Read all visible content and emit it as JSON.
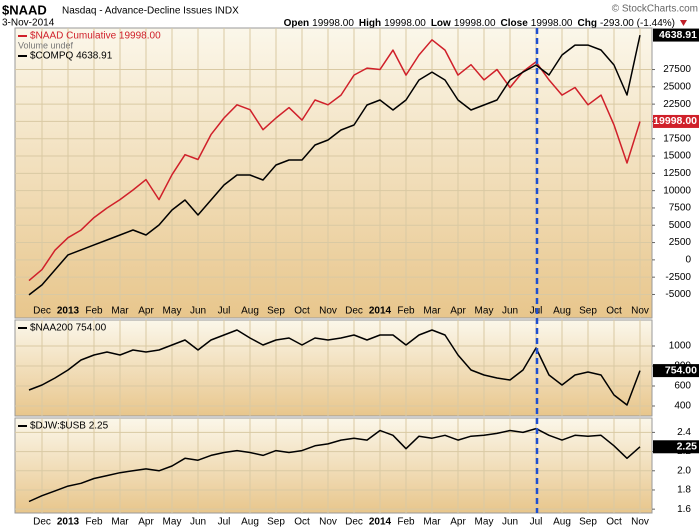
{
  "header": {
    "symbol": "$NAAD",
    "name": "Nasdaq - Advance-Decline Issues INDX",
    "date": "3-Nov-2014",
    "brand": "© StockCharts.com",
    "quote": [
      {
        "label": "Open",
        "value": "19998.00"
      },
      {
        "label": "High",
        "value": "19998.00"
      },
      {
        "label": "Low",
        "value": "19998.00"
      },
      {
        "label": "Close",
        "value": "19998.00"
      },
      {
        "label": "Chg",
        "value": "-293.00 (-1.44%)"
      }
    ]
  },
  "chart_data": [
    {
      "type": "line",
      "grid": true,
      "categories": [
        null,
        "Dec",
        null,
        "2013",
        null,
        "Feb",
        null,
        "Mar",
        null,
        "Apr",
        null,
        "May",
        null,
        "Jun",
        null,
        "Jul",
        null,
        "Aug",
        null,
        "Sep",
        null,
        "Oct",
        null,
        "Nov",
        null,
        "Dec",
        null,
        "2014",
        null,
        "Feb",
        null,
        "Mar",
        null,
        "Apr",
        null,
        "May",
        null,
        "Jun",
        null,
        "Jul",
        null,
        "Aug",
        null,
        "Sep",
        null,
        "Oct",
        null,
        "Nov"
      ],
      "ylim": [
        -8400,
        33500
      ],
      "yticks": [
        -5000,
        -2500,
        0,
        2500,
        5000,
        7500,
        10000,
        12500,
        15000,
        17500,
        20000,
        22500,
        25000,
        27500
      ],
      "y2lim": [
        2714,
        4687
      ],
      "volume_note": "Volume undef",
      "series": [
        {
          "name": "$NAAD Cumulative 19998.00",
          "color": "#d0202a",
          "last_label": "19998.00",
          "values": [
            -3000,
            -1400,
            1400,
            3200,
            4300,
            6100,
            7500,
            8700,
            10100,
            11600,
            8700,
            12300,
            15200,
            14500,
            18100,
            20500,
            22400,
            21700,
            18800,
            20500,
            22000,
            20200,
            23100,
            22400,
            23800,
            26700,
            27700,
            27500,
            30300,
            26700,
            29600,
            31800,
            30300,
            26700,
            28200,
            26000,
            27500,
            24900,
            27200,
            28600,
            26000,
            23800,
            24900,
            22400,
            23800,
            19500,
            14000,
            19998
          ]
        },
        {
          "name": "$COMPQ 4638.91",
          "color": "#000000",
          "axis": "y2",
          "last_label": "4638.91",
          "values": [
            2871,
            2939,
            3041,
            3143,
            3177,
            3211,
            3245,
            3279,
            3313,
            3279,
            3347,
            3449,
            3517,
            3415,
            3517,
            3619,
            3687,
            3687,
            3653,
            3755,
            3789,
            3789,
            3891,
            3925,
            3993,
            4027,
            4163,
            4197,
            4129,
            4197,
            4333,
            4387,
            4333,
            4197,
            4129,
            4163,
            4197,
            4333,
            4387,
            4435,
            4367,
            4503,
            4571,
            4571,
            4537,
            4435,
            4231,
            4638.91
          ]
        }
      ]
    },
    {
      "type": "line",
      "grid": true,
      "ylim": [
        300,
        1260
      ],
      "yticks": [
        400,
        600,
        800,
        1000
      ],
      "series": [
        {
          "name": "$NAA200 754.00",
          "color": "#000000",
          "last_label": "754.00",
          "values": [
            560,
            610,
            680,
            760,
            860,
            910,
            940,
            910,
            960,
            940,
            960,
            1010,
            1060,
            960,
            1060,
            1110,
            1160,
            1080,
            1010,
            1060,
            1080,
            1010,
            1080,
            1060,
            1080,
            1110,
            1060,
            1110,
            1110,
            1010,
            1110,
            1160,
            1110,
            910,
            760,
            710,
            680,
            660,
            760,
            980,
            710,
            610,
            710,
            740,
            710,
            510,
            410,
            754
          ]
        }
      ]
    },
    {
      "type": "line",
      "grid": true,
      "categories": [
        null,
        "Dec",
        null,
        "2013",
        null,
        "Feb",
        null,
        "Mar",
        null,
        "Apr",
        null,
        "May",
        null,
        "Jun",
        null,
        "Jul",
        null,
        "Aug",
        null,
        "Sep",
        null,
        "Oct",
        null,
        "Nov",
        null,
        "Dec",
        null,
        "2014",
        null,
        "Feb",
        null,
        "Mar",
        null,
        "Apr",
        null,
        "May",
        null,
        "Jun",
        null,
        "Jul",
        null,
        "Aug",
        null,
        "Sep",
        null,
        "Oct",
        null,
        "Nov"
      ],
      "ylim": [
        1.56,
        2.55
      ],
      "yticks": [
        1.6,
        1.8,
        {
          "value": 2,
          "label": "2.0"
        },
        2.2,
        2.4
      ],
      "series": [
        {
          "name": "$DJW:$USB 2.25",
          "color": "#000000",
          "last_label": "2.25",
          "values": [
            1.68,
            1.74,
            1.79,
            1.84,
            1.87,
            1.92,
            1.95,
            1.98,
            2,
            2.02,
            2,
            2.05,
            2.13,
            2.11,
            2.16,
            2.19,
            2.21,
            2.19,
            2.16,
            2.21,
            2.19,
            2.21,
            2.26,
            2.28,
            2.32,
            2.34,
            2.32,
            2.42,
            2.37,
            2.23,
            2.36,
            2.34,
            2.37,
            2.32,
            2.36,
            2.37,
            2.39,
            2.42,
            2.4,
            2.44,
            2.37,
            2.32,
            2.37,
            2.36,
            2.37,
            2.26,
            2.13,
            2.25
          ]
        }
      ]
    }
  ]
}
